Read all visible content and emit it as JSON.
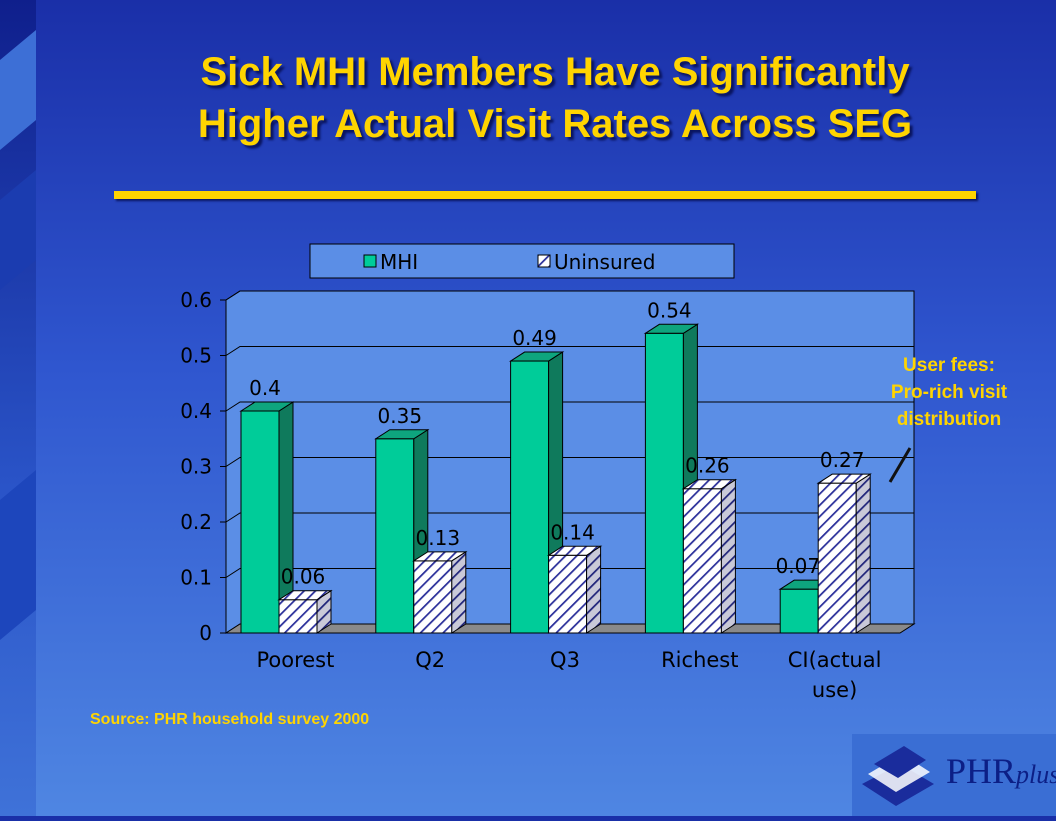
{
  "slide": {
    "title_line1": "Sick MHI Members Have Significantly",
    "title_line2": "Higher Actual Visit Rates Across SEG",
    "annotation_line1": "User fees:",
    "annotation_line2": "Pro-rich visit",
    "annotation_line3": "distribution",
    "source": "Source: PHR household survey 2000",
    "logo_main": "PHR",
    "logo_suffix": "plus",
    "colors": {
      "title": "#ffd400",
      "background": "#2f56cf"
    }
  },
  "chart_data": {
    "type": "bar",
    "categories": [
      "Poorest",
      "Q2",
      "Q3",
      "Richest",
      "CI(actual use)"
    ],
    "series": [
      {
        "name": "MHI",
        "values": [
          0.4,
          0.35,
          0.49,
          0.54,
          0.079
        ],
        "labels": [
          "0.4",
          "0.35",
          "0.49",
          "0.54",
          "0.079"
        ],
        "color": "#00cc99",
        "pattern": "solid"
      },
      {
        "name": "Uninsured",
        "values": [
          0.06,
          0.13,
          0.14,
          0.26,
          0.27
        ],
        "labels": [
          "0.06",
          "0.13",
          "0.14",
          "0.26",
          "0.27"
        ],
        "color": "#ffffff",
        "pattern": "diagonal-hatch"
      }
    ],
    "yticks": [
      "0",
      "0.1",
      "0.2",
      "0.3",
      "0.4",
      "0.5",
      "0.6"
    ],
    "ylim": [
      0,
      0.6
    ],
    "grid": true,
    "legend_position": "top",
    "plot_background": "#5b8ee6"
  }
}
